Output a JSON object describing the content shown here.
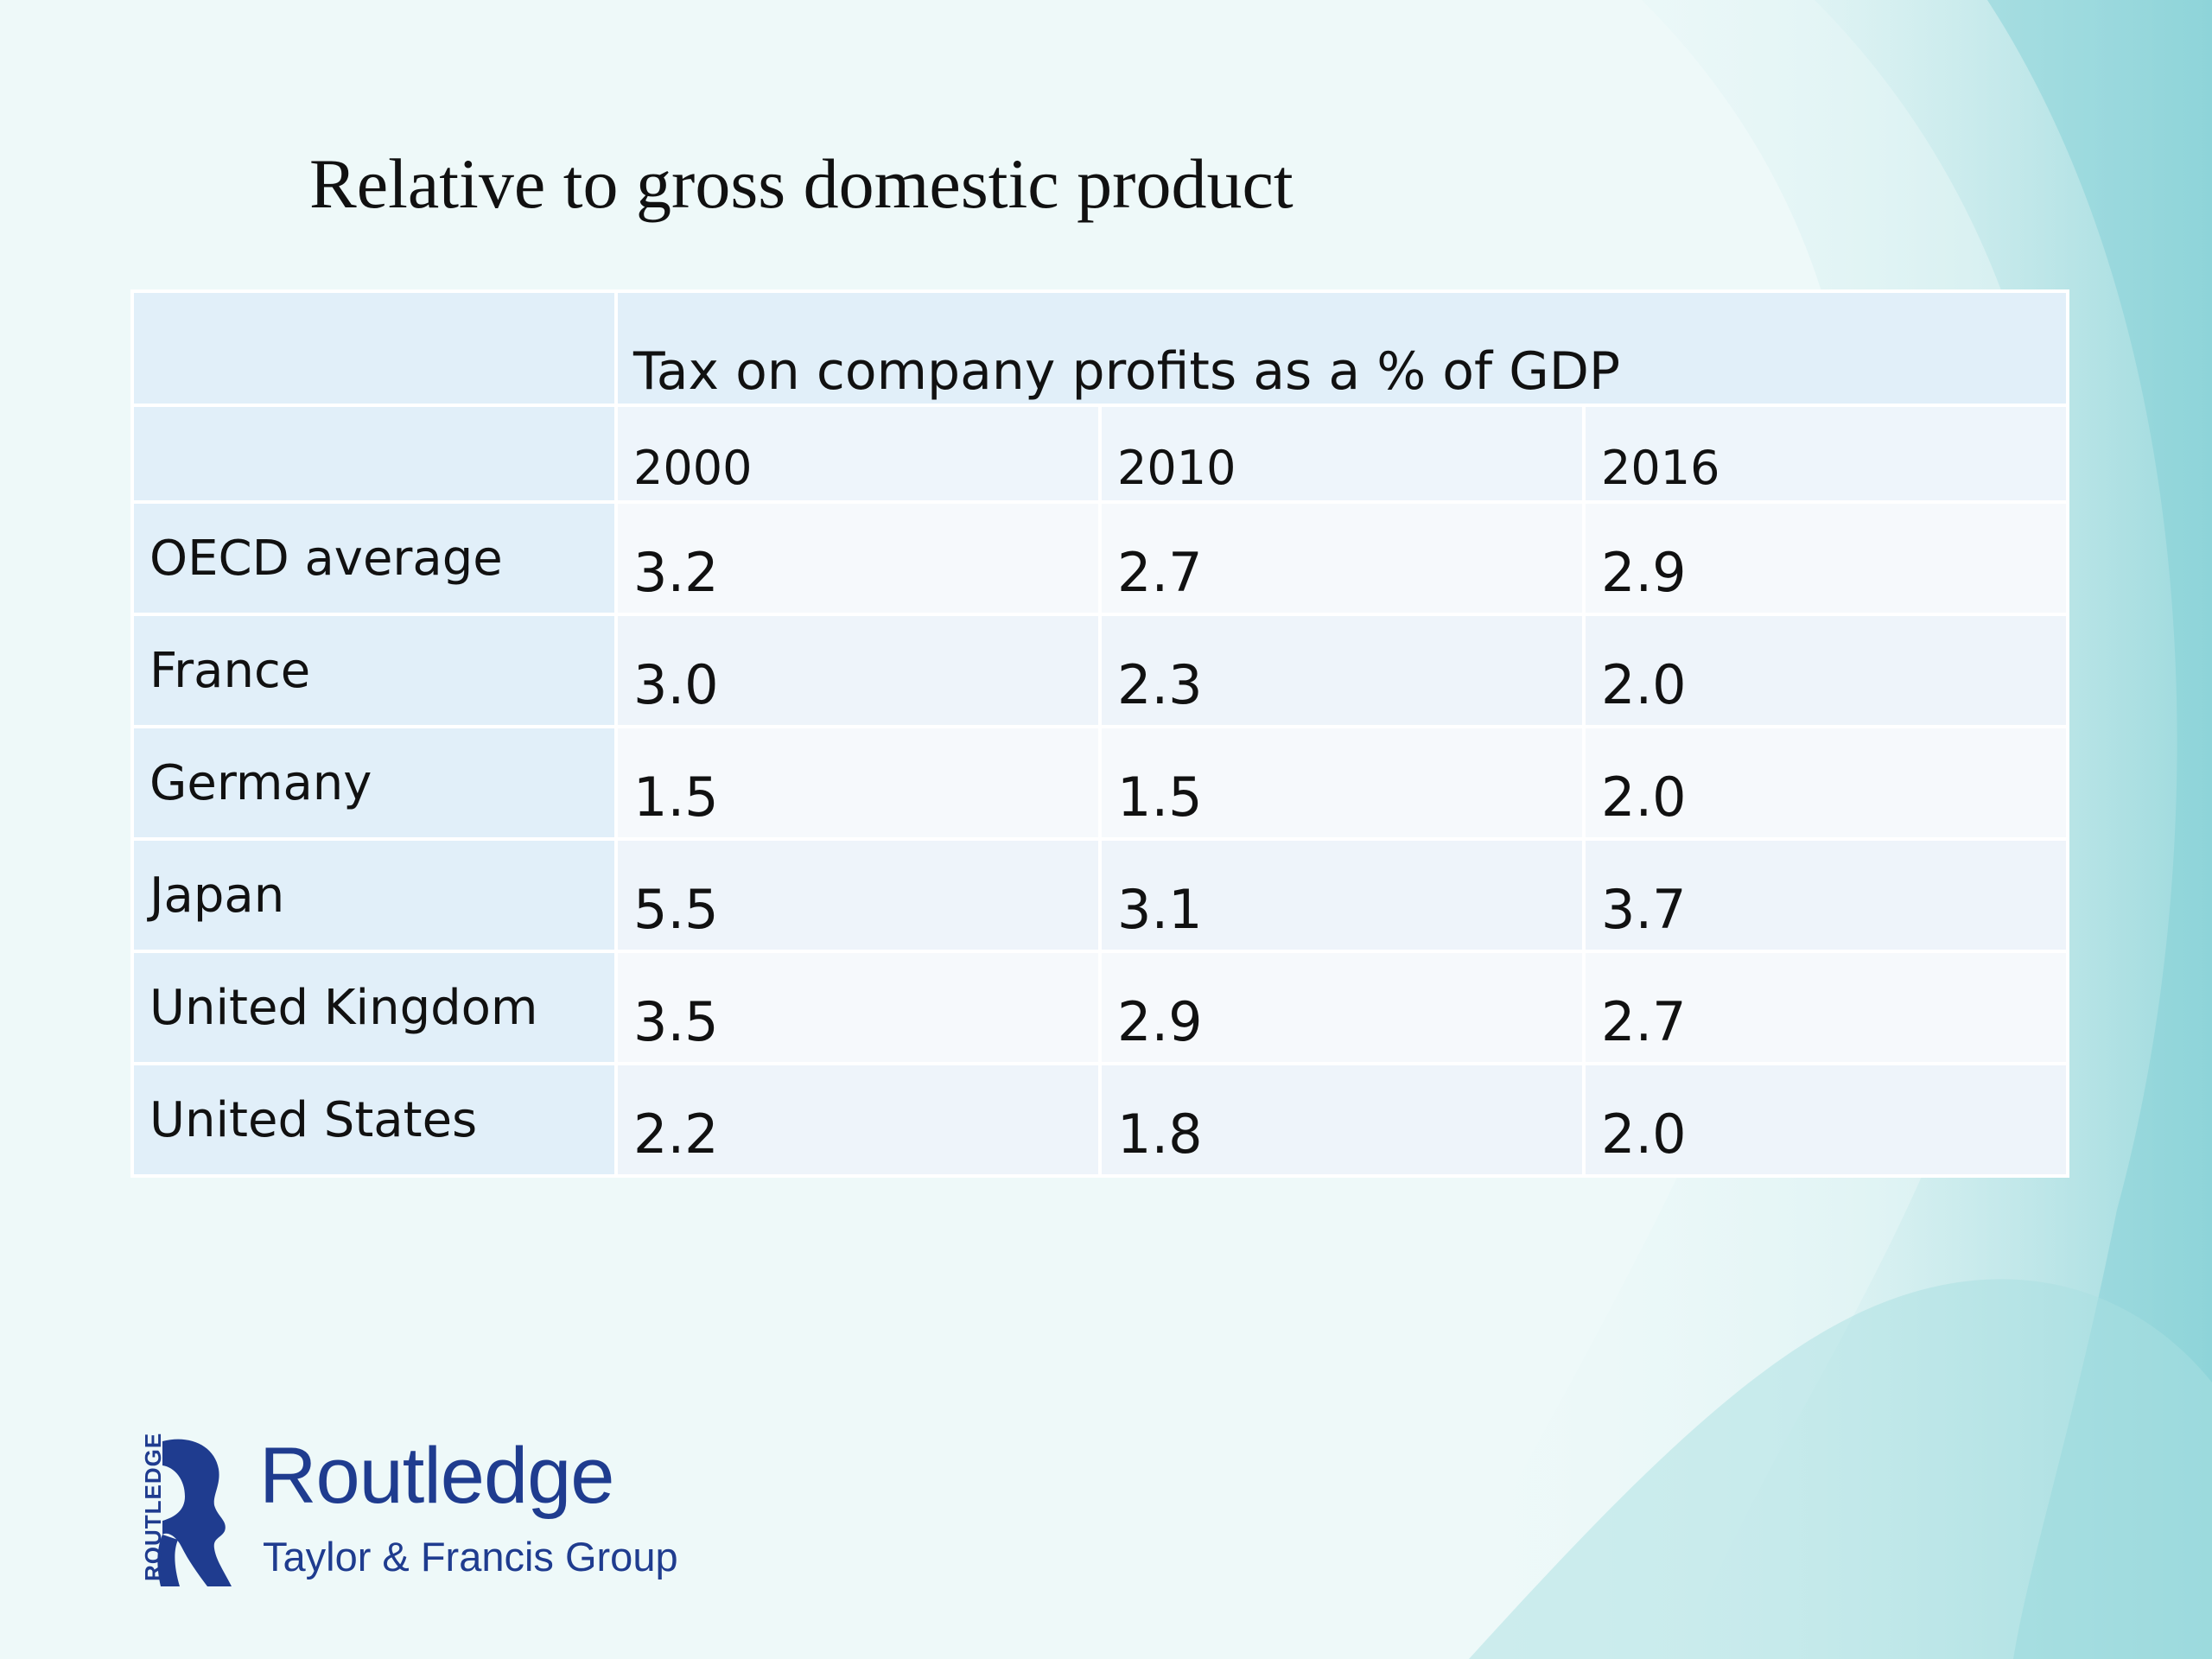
{
  "title": "Relative to gross domestic product",
  "table": {
    "group_header": "Tax on company profits as a % of GDP",
    "years": [
      "2000",
      "2010",
      "2016"
    ],
    "rows": [
      {
        "country": "OECD average",
        "values": [
          "3.2",
          "2.7",
          "2.9"
        ]
      },
      {
        "country": "France",
        "values": [
          "3.0",
          "2.3",
          "2.0"
        ]
      },
      {
        "country": "Germany",
        "values": [
          "1.5",
          "1.5",
          "2.0"
        ]
      },
      {
        "country": "Japan",
        "values": [
          "5.5",
          "3.1",
          "3.7"
        ]
      },
      {
        "country": "United Kingdom",
        "values": [
          "3.5",
          "2.9",
          "2.7"
        ]
      },
      {
        "country": "United States",
        "values": [
          "2.2",
          "1.8",
          "2.0"
        ]
      }
    ]
  },
  "logo": {
    "name": "Routledge",
    "subtitle": "Taylor & Francis Group",
    "vertical_text": "ROUTLEDGE",
    "color": "#1f3c8f"
  },
  "colors": {
    "background": "#eef9f9",
    "wave": "#8fd4d8",
    "header_cell": "#e1eff9"
  }
}
